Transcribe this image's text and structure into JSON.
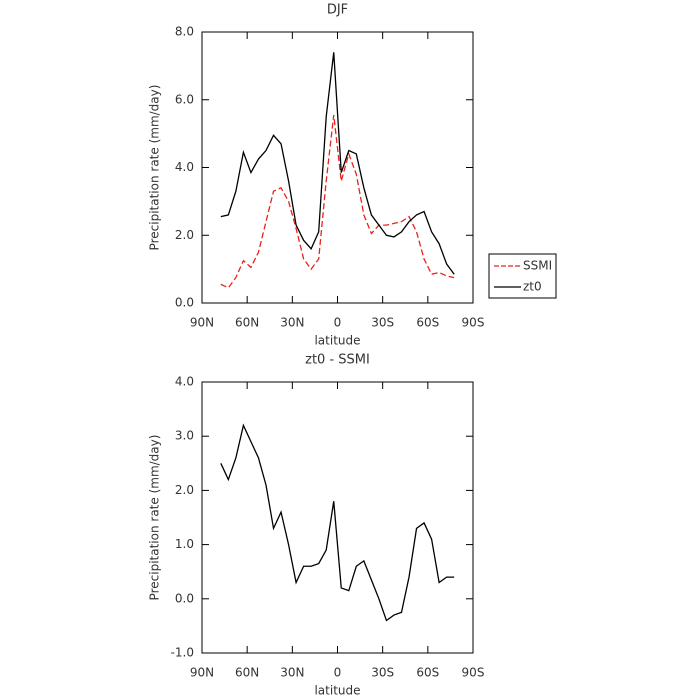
{
  "chart_data": [
    {
      "type": "line",
      "title": "DJF",
      "xlabel": "latitude",
      "ylabel": "Precipitation rate (mm/day)",
      "x": [
        77.5,
        72.5,
        67.5,
        62.5,
        57.5,
        52.5,
        47.5,
        42.5,
        37.5,
        32.5,
        27.5,
        22.5,
        17.5,
        12.5,
        7.5,
        2.5,
        -2.5,
        -7.5,
        -12.5,
        -17.5,
        -22.5,
        -27.5,
        -32.5,
        -37.5,
        -42.5,
        -47.5,
        -52.5,
        -57.5,
        -62.5,
        -67.5,
        -72.5,
        -77.5
      ],
      "series": [
        {
          "name": "SSMI",
          "color": "#e8221c",
          "dashed": true,
          "values": [
            0.55,
            0.45,
            0.75,
            1.25,
            1.05,
            1.5,
            2.4,
            3.3,
            3.4,
            3.0,
            2.2,
            1.3,
            1.0,
            1.3,
            3.6,
            5.55,
            3.6,
            4.4,
            3.8,
            2.6,
            2.05,
            2.3,
            2.3,
            2.35,
            2.4,
            2.55,
            2.1,
            1.3,
            0.85,
            0.9,
            0.8,
            0.75
          ]
        },
        {
          "name": "zt0",
          "color": "#000000",
          "dashed": false,
          "values": [
            2.55,
            2.6,
            3.3,
            4.45,
            3.85,
            4.25,
            4.5,
            4.95,
            4.7,
            3.6,
            2.3,
            1.85,
            1.6,
            2.1,
            5.5,
            7.4,
            3.85,
            4.5,
            4.4,
            3.4,
            2.6,
            2.3,
            2.0,
            1.95,
            2.1,
            2.4,
            2.6,
            2.7,
            2.1,
            1.75,
            1.15,
            0.85
          ]
        }
      ],
      "xlim": [
        90,
        -90
      ],
      "xticks": [
        {
          "value": 90,
          "label": "90N"
        },
        {
          "value": 60,
          "label": "60N"
        },
        {
          "value": 30,
          "label": "30N"
        },
        0,
        {
          "value": -30,
          "label": "30S"
        },
        {
          "value": -60,
          "label": "60S"
        },
        {
          "value": -90,
          "label": "90S"
        }
      ],
      "ylim": [
        0,
        8
      ],
      "yticks": [
        {
          "value": 0,
          "label": "0.0"
        },
        {
          "value": 2,
          "label": "2.0"
        },
        {
          "value": 4,
          "label": "4.0"
        },
        {
          "value": 6,
          "label": "6.0"
        },
        {
          "value": 8,
          "label": "8.0"
        }
      ],
      "legend": "outside-right"
    },
    {
      "type": "line",
      "title": "zt0 - SSMI",
      "xlabel": "latitude",
      "ylabel": "Precipitation rate (mm/day)",
      "x": [
        77.5,
        72.5,
        67.5,
        62.5,
        57.5,
        52.5,
        47.5,
        42.5,
        37.5,
        32.5,
        27.5,
        22.5,
        17.5,
        12.5,
        7.5,
        2.5,
        -2.5,
        -7.5,
        -12.5,
        -17.5,
        -22.5,
        -27.5,
        -32.5,
        -37.5,
        -42.5,
        -47.5,
        -52.5,
        -57.5,
        -62.5,
        -67.5,
        -72.5,
        -77.5
      ],
      "series": [
        {
          "color": "#000000",
          "dashed": false,
          "values": [
            2.5,
            2.2,
            2.6,
            3.2,
            2.9,
            2.6,
            2.1,
            1.3,
            1.6,
            1.0,
            0.3,
            0.6,
            0.6,
            0.65,
            0.9,
            1.8,
            0.2,
            0.15,
            0.6,
            0.7,
            0.35,
            0.0,
            -0.4,
            -0.3,
            -0.25,
            0.4,
            1.3,
            1.4,
            1.1,
            0.3,
            0.4,
            0.4
          ]
        }
      ],
      "xlim": [
        90,
        -90
      ],
      "xticks": [
        {
          "value": 90,
          "label": "90N"
        },
        {
          "value": 60,
          "label": "60N"
        },
        {
          "value": 30,
          "label": "30N"
        },
        0,
        {
          "value": -30,
          "label": "30S"
        },
        {
          "value": -60,
          "label": "60S"
        },
        {
          "value": -90,
          "label": "90S"
        }
      ],
      "ylim": [
        -1,
        4
      ],
      "yticks": [
        {
          "value": -1,
          "label": "-1.0"
        },
        {
          "value": 0,
          "label": "0.0"
        },
        {
          "value": 1,
          "label": "1.0"
        },
        {
          "value": 2,
          "label": "2.0"
        },
        {
          "value": 3,
          "label": "3.0"
        },
        {
          "value": 4,
          "label": "4.0"
        }
      ]
    }
  ]
}
